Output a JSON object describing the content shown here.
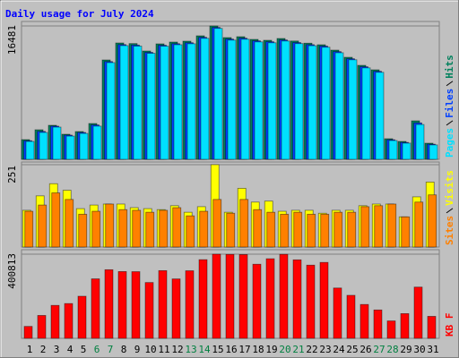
{
  "chart_data": [
    {
      "type": "bar",
      "title": "Daily usage for July 2024",
      "ylim": [
        0,
        16481
      ],
      "yticks": [
        16481
      ],
      "grid": true,
      "series": [
        {
          "name": "Hits",
          "color": "#00805c",
          "values": [
            2433,
            3650,
            4203,
            3097,
            3429,
            4424,
            12277,
            14378,
            14302,
            13383,
            14267,
            14489,
            14599,
            15263,
            16481,
            15042,
            15152,
            14820,
            14710,
            14931,
            14620,
            14350,
            14157,
            13493,
            12608,
            11613,
            11060,
            2544,
            2212,
            4756,
            1991
          ]
        },
        {
          "name": "Files",
          "color": "#0040ff",
          "values": [
            2300,
            3450,
            4100,
            2990,
            3320,
            4250,
            12080,
            14180,
            14120,
            13220,
            14100,
            14290,
            14410,
            15080,
            16300,
            14860,
            14970,
            14640,
            14530,
            14750,
            14430,
            14170,
            13990,
            13310,
            12430,
            11440,
            10880,
            2420,
            2090,
            4500,
            1870
          ]
        },
        {
          "name": "Pages",
          "color": "#00e0ff",
          "values": [
            2210,
            3320,
            3980,
            2870,
            3200,
            4100,
            11950,
            14050,
            13990,
            13100,
            13980,
            14160,
            14280,
            14950,
            16180,
            14730,
            14840,
            14510,
            14400,
            14620,
            14300,
            14040,
            13850,
            13170,
            12300,
            11300,
            10750,
            2320,
            2000,
            4300,
            1780
          ]
        }
      ]
    },
    {
      "type": "bar",
      "ylim": [
        0,
        251
      ],
      "yticks": [
        251
      ],
      "grid": true,
      "series": [
        {
          "name": "Visits",
          "color": "#ffff00",
          "values": [
            112,
            156,
            193,
            173,
            117,
            128,
            131,
            131,
            120,
            117,
            114,
            126,
            106,
            123,
            251,
            106,
            179,
            137,
            140,
            109,
            112,
            112,
            103,
            112,
            112,
            126,
            131,
            131,
            92,
            153,
            198
          ]
        },
        {
          "name": "Sites",
          "color": "#ff8000",
          "values": [
            109,
            128,
            165,
            145,
            100,
            109,
            131,
            114,
            112,
            106,
            112,
            120,
            95,
            109,
            145,
            103,
            145,
            114,
            106,
            100,
            106,
            100,
            100,
            106,
            106,
            123,
            126,
            131,
            92,
            137,
            159
          ]
        }
      ]
    },
    {
      "type": "bar",
      "ylim": [
        0,
        400813
      ],
      "yticks": [
        400813
      ],
      "grid": true,
      "categories": [
        "1",
        "2",
        "3",
        "4",
        "5",
        "6",
        "7",
        "8",
        "9",
        "10",
        "11",
        "12",
        "13",
        "14",
        "15",
        "16",
        "17",
        "18",
        "19",
        "20",
        "21",
        "22",
        "23",
        "24",
        "25",
        "26",
        "27",
        "28",
        "29",
        "30",
        "31"
      ],
      "category_colors": [
        "#000000",
        "#000000",
        "#000000",
        "#000000",
        "#000000",
        "#008040",
        "#008040",
        "#000000",
        "#000000",
        "#000000",
        "#000000",
        "#000000",
        "#008040",
        "#008040",
        "#000000",
        "#000000",
        "#000000",
        "#000000",
        "#000000",
        "#008040",
        "#008040",
        "#000000",
        "#000000",
        "#000000",
        "#000000",
        "#000000",
        "#008040",
        "#008040",
        "#000000",
        "#000000",
        "#000000"
      ],
      "series": [
        {
          "name": "KB F",
          "color": "#ff0000",
          "values": [
            56640,
            108900,
            156850,
            165570,
            200420,
            283200,
            326780,
            318060,
            317500,
            265780,
            322420,
            282900,
            321800,
            374700,
            400813,
            399800,
            398900,
            352920,
            379060,
            400100,
            373900,
            348560,
            361630,
            239640,
            204780,
            161210,
            135070,
            82780,
            117640,
            243990,
            104570
          ]
        }
      ]
    }
  ]
}
